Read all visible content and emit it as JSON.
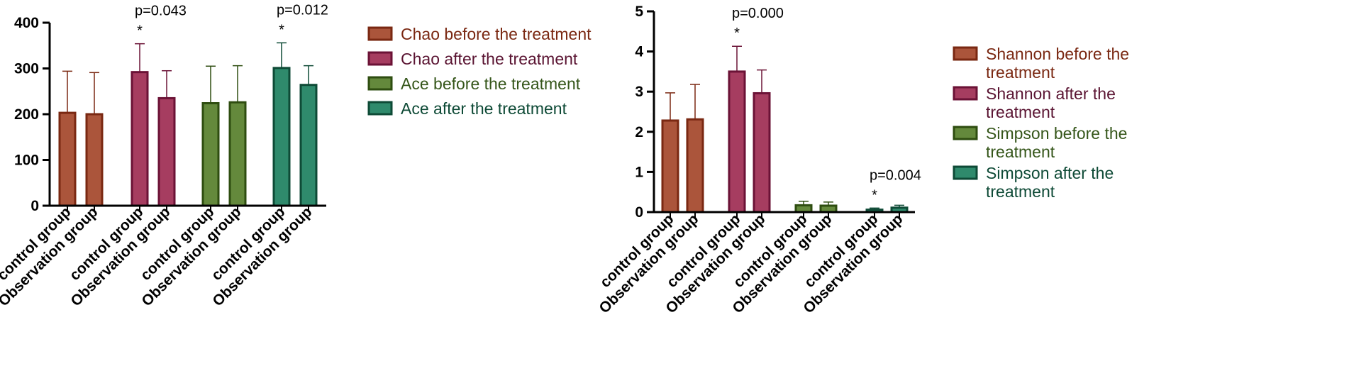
{
  "chart_data": [
    {
      "type": "bar",
      "title": "",
      "xlabel": "",
      "ylabel": "",
      "ylim": [
        0,
        400
      ],
      "yticks": [
        0,
        100,
        200,
        300,
        400
      ],
      "categories": [
        "control group",
        "Observation group",
        "control group",
        "Observation group",
        "control group",
        "Observation group",
        "control group",
        "Observation group"
      ],
      "grid": false,
      "legend_position": "right",
      "series": [
        {
          "name": "Chao before the treatment",
          "fill": "#ab553b",
          "stroke": "#7a2812",
          "text_color": "#7a2812",
          "values": [
            203,
            200
          ],
          "errors": [
            91,
            91
          ],
          "positions": [
            0,
            1
          ]
        },
        {
          "name": "Chao after the treatment",
          "fill": "#a63d60",
          "stroke": "#6b1236",
          "text_color": "#5a1432",
          "values": [
            292,
            235
          ],
          "errors": [
            62,
            60
          ],
          "positions": [
            2,
            3
          ]
        },
        {
          "name": "Ace before the treatment",
          "fill": "#64893c",
          "stroke": "#2e4d10",
          "text_color": "#35561a",
          "values": [
            224,
            226
          ],
          "errors": [
            81,
            80
          ],
          "positions": [
            4,
            5
          ]
        },
        {
          "name": "Ace after the treatment",
          "fill": "#2f8a6c",
          "stroke": "#0e4a36",
          "text_color": "#0e4a36",
          "values": [
            301,
            264
          ],
          "errors": [
            55,
            42
          ],
          "positions": [
            6,
            7
          ]
        }
      ],
      "annotations": [
        {
          "position": 2,
          "p_text": "p=0.043",
          "star": "*"
        },
        {
          "position": 6,
          "p_text": "p=0.012",
          "star": "*"
        }
      ]
    },
    {
      "type": "bar",
      "title": "",
      "xlabel": "",
      "ylabel": "",
      "ylim": [
        0,
        5
      ],
      "yticks": [
        0,
        1,
        2,
        3,
        4,
        5
      ],
      "categories": [
        "control group",
        "Observation group",
        "control group",
        "Observation group",
        "control group",
        "Observation group",
        "control group",
        "Observation group"
      ],
      "grid": false,
      "legend_position": "right",
      "series": [
        {
          "name": "Shannon before the treatment",
          "fill": "#ab553b",
          "stroke": "#7a2812",
          "text_color": "#7a2812",
          "values": [
            2.28,
            2.31
          ],
          "errors": [
            0.69,
            0.87
          ],
          "positions": [
            0,
            1
          ]
        },
        {
          "name": "Shannon after the treatment",
          "fill": "#a63d60",
          "stroke": "#6b1236",
          "text_color": "#5a1432",
          "values": [
            3.5,
            2.96
          ],
          "errors": [
            0.63,
            0.58
          ],
          "positions": [
            2,
            3
          ]
        },
        {
          "name": "Simpson before the treatment",
          "fill": "#64893c",
          "stroke": "#2e4d10",
          "text_color": "#35561a",
          "values": [
            0.17,
            0.16
          ],
          "errors": [
            0.1,
            0.09
          ],
          "positions": [
            4,
            5
          ]
        },
        {
          "name": "Simpson after the treatment",
          "fill": "#2f8a6c",
          "stroke": "#0e4a36",
          "text_color": "#0e4a36",
          "values": [
            0.06,
            0.11
          ],
          "errors": [
            0.04,
            0.06
          ],
          "positions": [
            6,
            7
          ]
        }
      ],
      "annotations": [
        {
          "position": 2,
          "p_text": "p=0.000",
          "star": "*"
        },
        {
          "position": 6,
          "p_text": "p=0.004",
          "star": "*"
        }
      ]
    }
  ]
}
